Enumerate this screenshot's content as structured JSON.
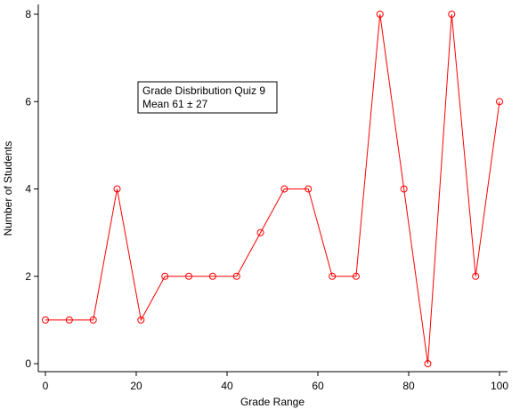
{
  "chart_data": {
    "type": "line",
    "xlabel": "Grade Range",
    "ylabel": "Number of Students",
    "annotation": [
      "Grade Disbribution Quiz 9",
      "Mean 61 ± 27"
    ],
    "x": [
      0,
      5.26,
      10.53,
      15.79,
      21.05,
      26.32,
      31.58,
      36.84,
      42.11,
      47.37,
      52.63,
      57.89,
      63.16,
      68.42,
      73.68,
      78.95,
      84.21,
      89.47,
      94.74,
      100
    ],
    "series": [
      {
        "color": "#ff0000",
        "values": [
          1,
          1,
          1,
          4,
          1,
          2,
          2,
          2,
          2,
          3,
          4,
          4,
          2,
          2,
          8,
          4,
          0,
          8,
          2,
          6
        ]
      }
    ],
    "xlim": [
      0,
      100
    ],
    "xticks": [
      0,
      20,
      40,
      60,
      80,
      100
    ],
    "ylim": [
      0,
      8
    ],
    "yticks": [
      0,
      2,
      4,
      6,
      8
    ]
  }
}
